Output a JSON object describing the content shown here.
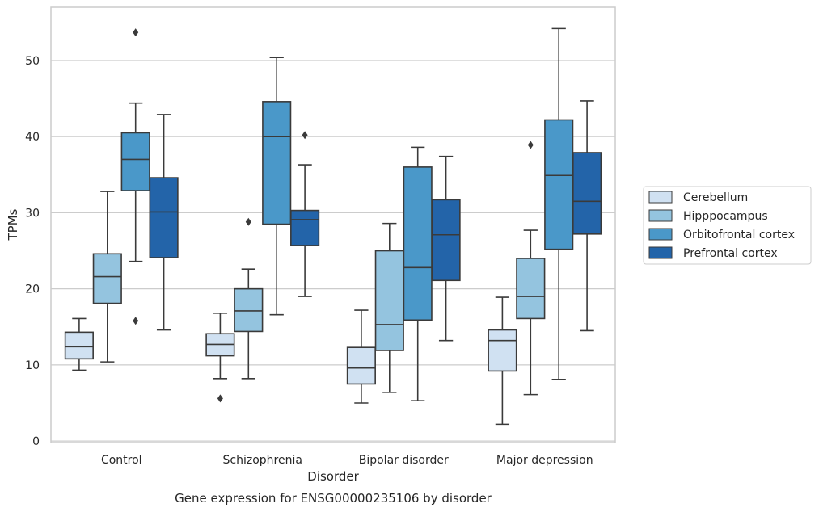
{
  "chart_data": {
    "type": "box",
    "categories": [
      "Control",
      "Schizophrenia",
      "Bipolar disorder",
      "Major depression"
    ],
    "xlabel": "Disorder",
    "ylabel": "TPMs",
    "caption": "Gene expression for ENSG00000235106 by disorder",
    "ylim": [
      -0.2,
      57
    ],
    "yticks": [
      0,
      10,
      20,
      30,
      40,
      50
    ],
    "grid": "horizontal",
    "legend_position": "right",
    "series": [
      {
        "name": "Cerebellum",
        "color": "#d0e1f2",
        "boxes": [
          {
            "whislo": 9.3,
            "q1": 10.8,
            "med": 12.4,
            "q3": 14.3,
            "whishi": 16.1,
            "fliers": []
          },
          {
            "whislo": 8.2,
            "q1": 11.2,
            "med": 12.7,
            "q3": 14.1,
            "whishi": 16.8,
            "fliers": [
              5.6
            ]
          },
          {
            "whislo": 5.0,
            "q1": 7.5,
            "med": 9.6,
            "q3": 12.3,
            "whishi": 17.2,
            "fliers": []
          },
          {
            "whislo": 2.2,
            "q1": 9.2,
            "med": 13.2,
            "q3": 14.6,
            "whishi": 18.9,
            "fliers": []
          }
        ]
      },
      {
        "name": "Hipppocampus",
        "color": "#94c4df",
        "boxes": [
          {
            "whislo": 10.4,
            "q1": 18.1,
            "med": 21.6,
            "q3": 24.6,
            "whishi": 32.8,
            "fliers": []
          },
          {
            "whislo": 8.2,
            "q1": 14.4,
            "med": 17.1,
            "q3": 20.0,
            "whishi": 22.6,
            "fliers": [
              28.8
            ]
          },
          {
            "whislo": 6.4,
            "q1": 11.9,
            "med": 15.3,
            "q3": 25.0,
            "whishi": 28.6,
            "fliers": []
          },
          {
            "whislo": 6.1,
            "q1": 16.1,
            "med": 19.0,
            "q3": 24.0,
            "whishi": 27.7,
            "fliers": [
              38.9
            ]
          }
        ]
      },
      {
        "name": "Orbitofrontal cortex",
        "color": "#4a98c9",
        "boxes": [
          {
            "whislo": 23.6,
            "q1": 32.9,
            "med": 37.0,
            "q3": 40.5,
            "whishi": 44.4,
            "fliers": [
              15.8,
              53.7
            ]
          },
          {
            "whislo": 16.6,
            "q1": 28.5,
            "med": 40.0,
            "q3": 44.6,
            "whishi": 50.4,
            "fliers": []
          },
          {
            "whislo": 5.3,
            "q1": 15.9,
            "med": 22.8,
            "q3": 36.0,
            "whishi": 38.6,
            "fliers": []
          },
          {
            "whislo": 8.1,
            "q1": 25.2,
            "med": 34.9,
            "q3": 42.2,
            "whishi": 54.2,
            "fliers": []
          }
        ]
      },
      {
        "name": "Prefrontal cortex",
        "color": "#2364a9",
        "boxes": [
          {
            "whislo": 14.6,
            "q1": 24.1,
            "med": 30.1,
            "q3": 34.6,
            "whishi": 42.9,
            "fliers": []
          },
          {
            "whislo": 19.0,
            "q1": 25.7,
            "med": 29.1,
            "q3": 30.3,
            "whishi": 36.3,
            "fliers": [
              40.2
            ]
          },
          {
            "whislo": 13.2,
            "q1": 21.1,
            "med": 27.1,
            "q3": 31.7,
            "whishi": 37.4,
            "fliers": []
          },
          {
            "whislo": 14.5,
            "q1": 27.2,
            "med": 31.5,
            "q3": 37.9,
            "whishi": 44.7,
            "fliers": []
          }
        ]
      }
    ]
  }
}
